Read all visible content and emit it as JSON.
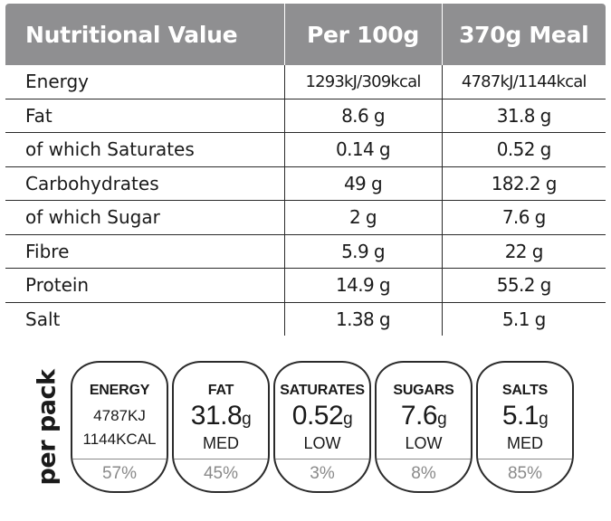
{
  "table": {
    "headers": [
      "Nutritional Value",
      "Per 100g",
      "370g Meal"
    ],
    "rows": [
      {
        "label": "Energy",
        "per100": "1293kJ/309kcal",
        "meal": "4787kJ/1144kcal"
      },
      {
        "label": "Fat",
        "per100": "8.6 g",
        "meal": "31.8 g"
      },
      {
        "label": "of which Saturates",
        "per100": "0.14 g",
        "meal": "0.52 g"
      },
      {
        "label": "Carbohydrates",
        "per100": "49 g",
        "meal": "182.2 g"
      },
      {
        "label": "of which Sugar",
        "per100": "2 g",
        "meal": "7.6 g"
      },
      {
        "label": "Fibre",
        "per100": "5.9 g",
        "meal": "22 g"
      },
      {
        "label": "Protein",
        "per100": "14.9 g",
        "meal": "55.2 g"
      },
      {
        "label": "Salt",
        "per100": "1.38 g",
        "meal": "5.1 g"
      }
    ]
  },
  "per_pack_label": "per pack",
  "badges": [
    {
      "name": "ENERGY",
      "line1": "4787KJ",
      "line2": "1144KCAL",
      "percent": "57%"
    },
    {
      "name": "FAT",
      "value": "31.8",
      "unit": "g",
      "level": "MED",
      "percent": "45%"
    },
    {
      "name": "SATURATES",
      "value": "0.52",
      "unit": "g",
      "level": "LOW",
      "percent": "3%"
    },
    {
      "name": "SUGARS",
      "value": "7.6",
      "unit": "g",
      "level": "LOW",
      "percent": "8%"
    },
    {
      "name": "SALTS",
      "value": "5.1",
      "unit": "g",
      "level": "MED",
      "percent": "85%"
    }
  ],
  "colors": {
    "header_bg": "#8f8f91",
    "header_text": "#ffffff",
    "percent_text": "#8a8a8a",
    "border": "#2b2b2b"
  }
}
